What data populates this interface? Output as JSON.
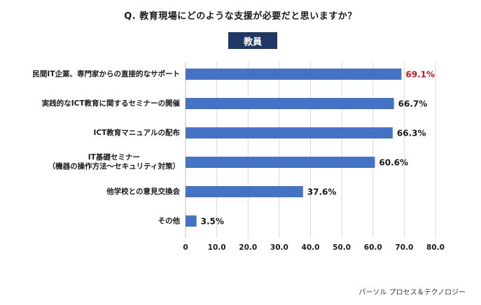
{
  "question": "Q.  教育現場にどのような支援が必要だと思いますか？",
  "panel_label": "教員",
  "watermark": "パーソル プロセス＆テクノロジー",
  "colors": {
    "bar": "#4472c4",
    "highlight": "#e0141e",
    "badge": "#1f3864",
    "grid": "#d9d9d9"
  },
  "chart_data": {
    "type": "bar",
    "orientation": "horizontal",
    "title": "Q.  教育現場にどのような支援が必要だと思いますか？",
    "subtitle": "教員",
    "categories": [
      [
        "民間IT企業、専門家からの直接的なサポート"
      ],
      [
        "実践的なICT教育に関するセミナーの開催"
      ],
      [
        "ICT教育マニュアルの配布"
      ],
      [
        "IT基礎セミナー",
        "（機器の操作方法～セキュリティ対策）"
      ],
      [
        "他学校との意見交換会"
      ],
      [
        "その他"
      ]
    ],
    "values": [
      69.1,
      66.7,
      66.3,
      60.6,
      37.6,
      3.5
    ],
    "value_labels": [
      "69.1%",
      "66.7%",
      "66.3%",
      "60.6%",
      "37.6%",
      "3.5%"
    ],
    "highlight_index": 0,
    "xlim": [
      0,
      80
    ],
    "xticks": [
      0,
      10,
      20,
      30,
      40,
      50,
      60,
      70,
      80
    ],
    "xtick_labels": [
      "0",
      "10.0",
      "20.0",
      "30.0",
      "40.0",
      "50.0",
      "60.0",
      "70.0",
      "80.0"
    ],
    "grid": true
  }
}
